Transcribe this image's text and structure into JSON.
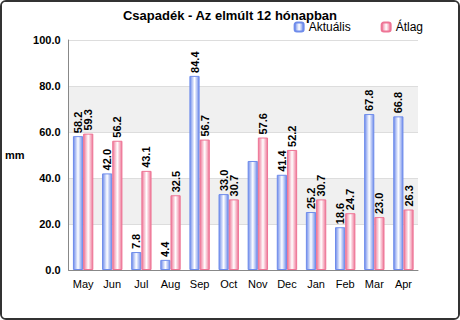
{
  "chart_data": {
    "type": "bar",
    "title": "Csapadék - Az elmúlt 12 hónapban",
    "y_label": "mm",
    "categories": [
      "May",
      "Jun",
      "Jul",
      "Aug",
      "Sep",
      "Oct",
      "Nov",
      "Dec",
      "Jan",
      "Feb",
      "Mar",
      "Apr"
    ],
    "series": [
      {
        "name": "Aktuális",
        "color": "#6f8ceb",
        "values": [
          58.2,
          42.0,
          7.8,
          4.4,
          84.4,
          33.0,
          47.4,
          41.4,
          25.2,
          18.6,
          67.8,
          66.8
        ],
        "value_labels": [
          "58.2",
          "42.0",
          "7.8",
          "4.4",
          "84.4",
          "33.0",
          null,
          "41.4",
          "25.2",
          "18.6",
          "67.8",
          "66.8"
        ]
      },
      {
        "name": "Átlag",
        "color": "#ee7596",
        "values": [
          59.3,
          56.2,
          43.1,
          32.5,
          56.7,
          30.7,
          57.6,
          52.2,
          30.7,
          24.7,
          23.0,
          26.3
        ],
        "value_labels": [
          "59.3",
          "56.2",
          "43.1",
          "32.5",
          "56.7",
          "30.7",
          "57.6",
          "52.2",
          "30.7",
          "24.7",
          "23.0",
          "26.3"
        ]
      }
    ],
    "ylim": [
      0,
      100
    ],
    "yticks": [
      {
        "value": 0,
        "label": "0.0"
      },
      {
        "value": 20,
        "label": "20.0"
      },
      {
        "value": 40,
        "label": "40.0"
      },
      {
        "value": 60,
        "label": "60.0"
      },
      {
        "value": 80,
        "label": "80.0"
      },
      {
        "value": 100,
        "label": "100.0"
      }
    ],
    "grid": true,
    "legend": "top-right",
    "data_labels": true
  }
}
